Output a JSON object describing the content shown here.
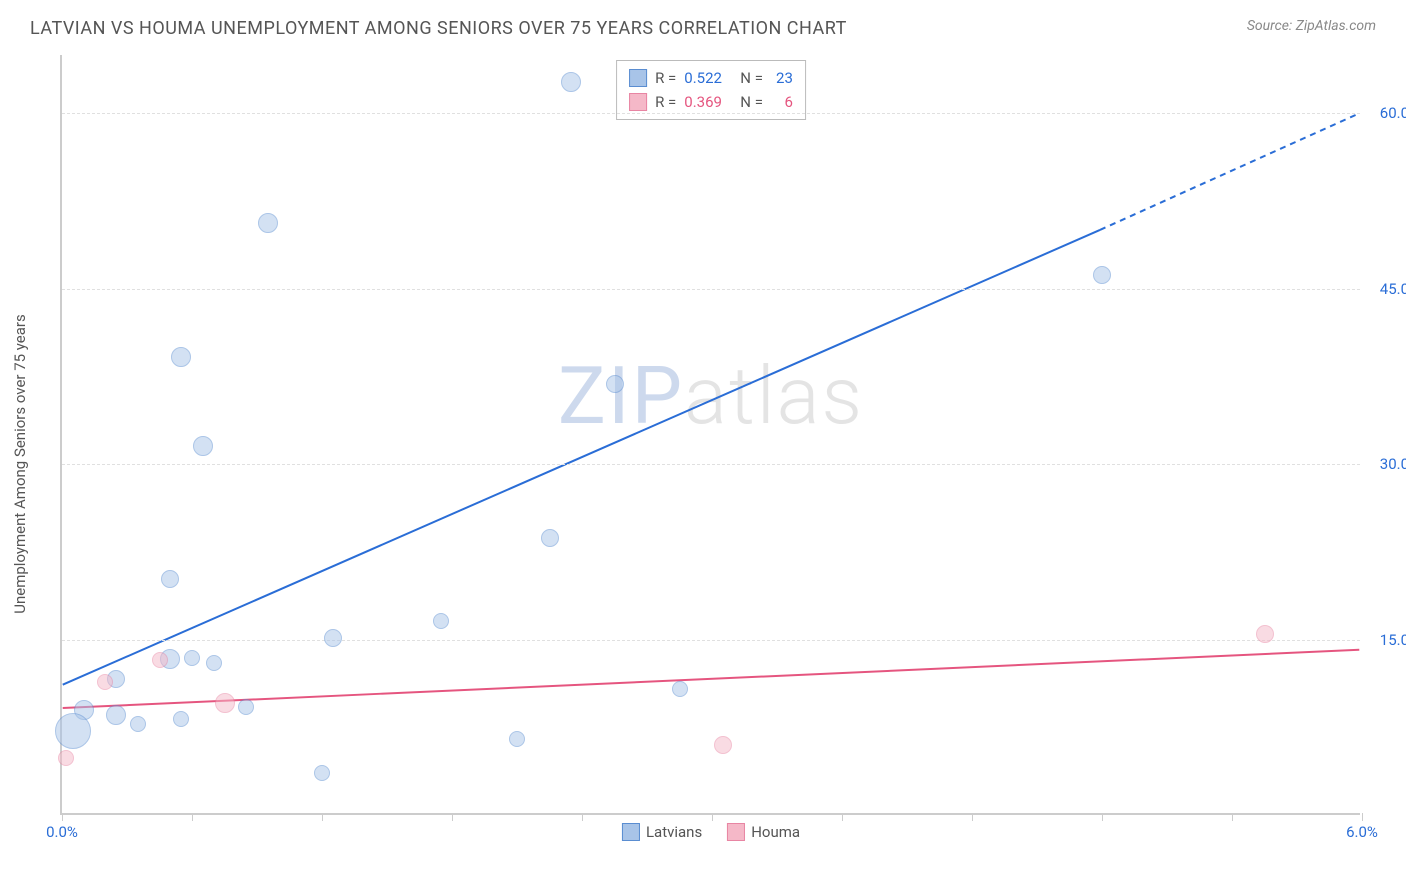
{
  "header": {
    "title": "LATVIAN VS HOUMA UNEMPLOYMENT AMONG SENIORS OVER 75 YEARS CORRELATION CHART",
    "source": "Source: ZipAtlas.com"
  },
  "watermark": {
    "part1": "ZIP",
    "part2": "atlas"
  },
  "chart": {
    "type": "scatter-correlation",
    "y_axis_label": "Unemployment Among Seniors over 75 years",
    "background_color": "#ffffff",
    "grid_color": "#e0e0e0",
    "axis_color": "#cccccc",
    "xlim": [
      0.0,
      6.0
    ],
    "ylim": [
      0.0,
      65.0
    ],
    "x_ticks": [
      0.0,
      0.6,
      1.2,
      1.8,
      2.4,
      3.0,
      3.6,
      4.2,
      4.8,
      5.4,
      6.0
    ],
    "x_tick_labels": {
      "first": "0.0%",
      "last": "6.0%"
    },
    "y_ticks": [
      15.0,
      30.0,
      45.0,
      60.0
    ],
    "y_tick_labels": [
      "15.0%",
      "30.0%",
      "45.0%",
      "60.0%"
    ],
    "x_label_color": "#2a6dd6",
    "y_label_color": "#2a6dd6",
    "series": [
      {
        "name": "Latvians",
        "fill_color": "#a8c4e8",
        "fill_opacity": 0.5,
        "stroke_color": "#5a8dd1",
        "line_color": "#2a6dd6",
        "line_width": 2,
        "r_value": "0.522",
        "n_value": "23",
        "regression": {
          "x1": 0.0,
          "y1": 11.0,
          "x2": 4.8,
          "y2": 50.0,
          "x2_dash": 6.0,
          "y2_dash": 60.0
        },
        "points": [
          {
            "x": 2.35,
            "y": 62.5,
            "r": 10
          },
          {
            "x": 0.95,
            "y": 50.5,
            "r": 10
          },
          {
            "x": 4.8,
            "y": 46.0,
            "r": 9
          },
          {
            "x": 0.55,
            "y": 39.0,
            "r": 10
          },
          {
            "x": 2.55,
            "y": 36.7,
            "r": 9
          },
          {
            "x": 0.65,
            "y": 31.4,
            "r": 10
          },
          {
            "x": 2.25,
            "y": 23.5,
            "r": 9
          },
          {
            "x": 0.5,
            "y": 20.0,
            "r": 9
          },
          {
            "x": 1.75,
            "y": 16.4,
            "r": 8
          },
          {
            "x": 1.25,
            "y": 15.0,
            "r": 9
          },
          {
            "x": 0.6,
            "y": 13.3,
            "r": 8
          },
          {
            "x": 0.5,
            "y": 13.2,
            "r": 10
          },
          {
            "x": 0.7,
            "y": 12.8,
            "r": 8
          },
          {
            "x": 0.25,
            "y": 11.5,
            "r": 9
          },
          {
            "x": 2.85,
            "y": 10.6,
            "r": 8
          },
          {
            "x": 0.85,
            "y": 9.1,
            "r": 8
          },
          {
            "x": 0.1,
            "y": 8.8,
            "r": 10
          },
          {
            "x": 0.25,
            "y": 8.4,
            "r": 10
          },
          {
            "x": 0.55,
            "y": 8.0,
            "r": 8
          },
          {
            "x": 0.05,
            "y": 7.0,
            "r": 18
          },
          {
            "x": 0.35,
            "y": 7.6,
            "r": 8
          },
          {
            "x": 2.1,
            "y": 6.3,
            "r": 8
          },
          {
            "x": 1.2,
            "y": 3.4,
            "r": 8
          }
        ]
      },
      {
        "name": "Houma",
        "fill_color": "#f5b8c8",
        "fill_opacity": 0.5,
        "stroke_color": "#e885a3",
        "line_color": "#e5557f",
        "line_width": 2,
        "r_value": "0.369",
        "n_value": "6",
        "regression": {
          "x1": 0.0,
          "y1": 9.0,
          "x2": 6.0,
          "y2": 14.0
        },
        "points": [
          {
            "x": 5.55,
            "y": 15.3,
            "r": 9
          },
          {
            "x": 0.45,
            "y": 13.1,
            "r": 8
          },
          {
            "x": 0.2,
            "y": 11.2,
            "r": 8
          },
          {
            "x": 0.75,
            "y": 9.4,
            "r": 10
          },
          {
            "x": 3.05,
            "y": 5.8,
            "r": 9
          },
          {
            "x": 0.02,
            "y": 4.7,
            "r": 8
          }
        ]
      }
    ],
    "stat_legend_labels": {
      "r_label": "R =",
      "n_label": "N ="
    },
    "series_legend_labels": [
      "Latvians",
      "Houma"
    ]
  }
}
